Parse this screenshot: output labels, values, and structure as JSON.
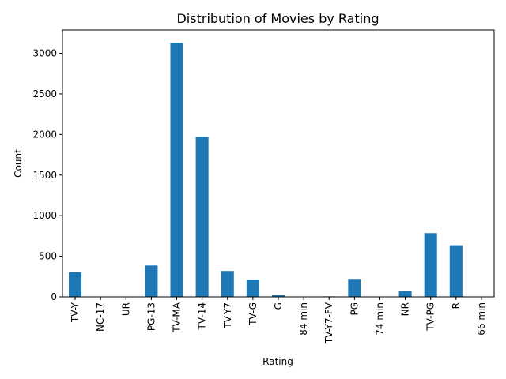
{
  "chart_data": {
    "type": "bar",
    "title": "Distribution of Movies by Rating",
    "xlabel": "Rating",
    "ylabel": "Count",
    "categories": [
      "TV-Y",
      "NC-17",
      "UR",
      "PG-13",
      "TV-MA",
      "TV-14",
      "TV-Y7",
      "TV-G",
      "G",
      "84 min",
      "TV-Y7-FV",
      "PG",
      "74 min",
      "NR",
      "TV-PG",
      "R",
      "66 min"
    ],
    "values": [
      306,
      3,
      3,
      386,
      3131,
      1973,
      319,
      214,
      20,
      1,
      6,
      221,
      1,
      75,
      785,
      636,
      1
    ],
    "ylim": [
      0,
      3287
    ],
    "yticks": [
      0,
      500,
      1000,
      1500,
      2000,
      2500,
      3000
    ],
    "bar_color": "#1f77b4",
    "grid": false
  }
}
